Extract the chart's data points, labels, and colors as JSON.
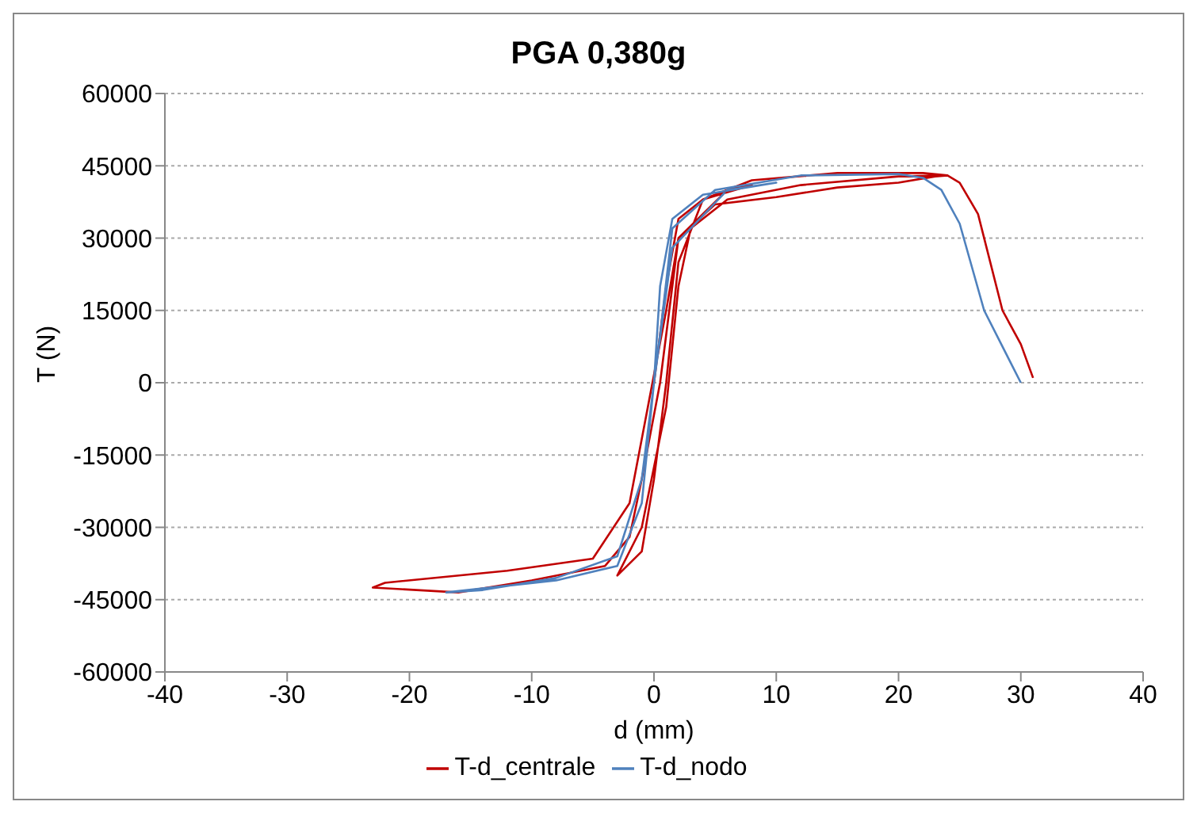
{
  "chart_data": {
    "type": "line",
    "title": "PGA 0,380g",
    "xlabel": "d (mm)",
    "ylabel": "T (N)",
    "xlim": [
      -40,
      40
    ],
    "xticks": [
      -40,
      -30,
      -20,
      -10,
      0,
      10,
      20,
      30,
      40
    ],
    "ylim": [
      -60000,
      60000
    ],
    "yticks": [
      -60000,
      -45000,
      -30000,
      -15000,
      0,
      15000,
      30000,
      45000,
      60000
    ],
    "grid": "y",
    "legend": "bottom",
    "marker": "none",
    "line_style": "solid",
    "series": [
      {
        "name": "T-d_centrale",
        "color": "#c00000",
        "x": [
          0,
          1,
          2,
          4,
          8,
          6,
          2,
          0.5,
          -1,
          -2,
          -4,
          -10,
          -16,
          -23,
          -22,
          -12,
          -5,
          -2,
          -0.5,
          1,
          2,
          5,
          10,
          15,
          20,
          23,
          24,
          22,
          15,
          8,
          4,
          2,
          1,
          0,
          -1,
          -3,
          -1,
          1,
          2,
          3,
          6,
          12,
          20,
          24,
          25,
          26.5,
          27.5,
          28.5,
          30,
          31
        ],
        "values": [
          0,
          20000,
          34000,
          38000,
          41000,
          40000,
          30000,
          0,
          -20000,
          -32000,
          -38000,
          -41000,
          -43500,
          -42500,
          -41500,
          -39000,
          -36500,
          -25000,
          -5000,
          15000,
          30000,
          37000,
          38500,
          40500,
          41500,
          42800,
          43000,
          43500,
          43500,
          42000,
          38000,
          25000,
          0,
          -20000,
          -35000,
          -40000,
          -30000,
          -5000,
          20000,
          32000,
          38000,
          41000,
          42800,
          43000,
          41500,
          35000,
          25000,
          15000,
          8000,
          1000
        ]
      },
      {
        "name": "T-d_nodo",
        "color": "#4f81bd",
        "x": [
          0,
          0.5,
          1.5,
          4,
          10,
          6,
          1.5,
          0,
          -1,
          -3,
          -8,
          -17,
          -14,
          -8,
          -3,
          -1,
          0.5,
          1.5,
          5,
          12,
          20,
          22,
          23.5,
          25,
          26,
          27,
          29,
          30
        ],
        "values": [
          0,
          20000,
          34000,
          39000,
          41500,
          40000,
          28000,
          0,
          -25000,
          -38000,
          -41000,
          -43500,
          -43000,
          -40500,
          -36000,
          -20000,
          10000,
          32000,
          40000,
          43000,
          43300,
          42500,
          40000,
          33000,
          24000,
          15000,
          5000,
          0
        ]
      }
    ]
  }
}
